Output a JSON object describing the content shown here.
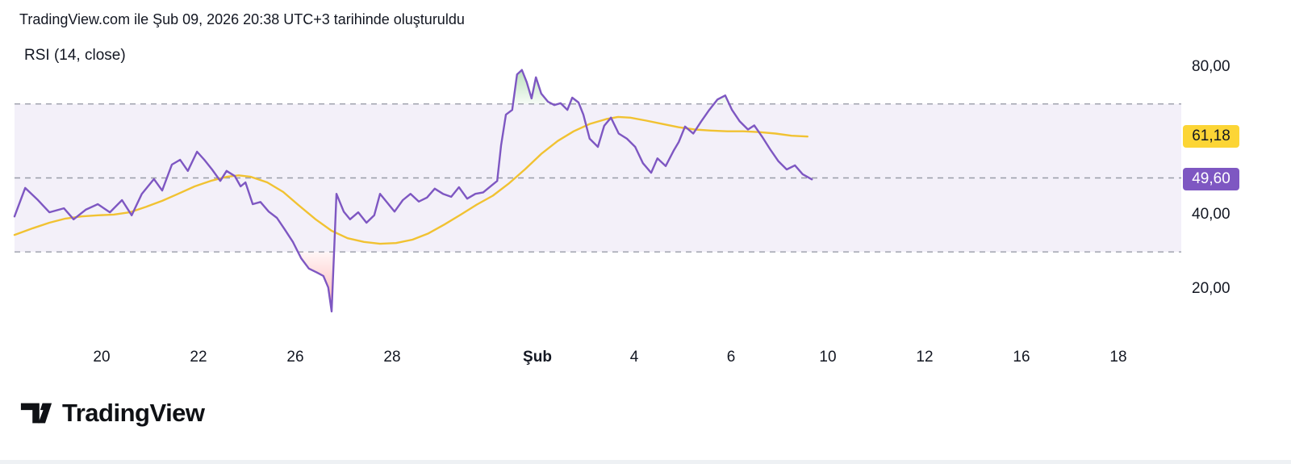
{
  "header": {
    "attribution": "TradingView.com ile Şub 09, 2026 20:38 UTC+3 tarihinde oluşturuldu"
  },
  "footer": {
    "logo_text": "TradingView"
  },
  "chart_data": {
    "type": "line",
    "title": "RSI (14, close)",
    "y_axis": {
      "range": [
        4,
        88
      ],
      "ticks": [
        {
          "label": "80,00",
          "value": 80
        },
        {
          "label": "40,00",
          "value": 40
        },
        {
          "label": "20,00",
          "value": 20
        }
      ]
    },
    "x_axis": {
      "note": "trading-day index, 0 = first visible day",
      "visible_day_range": [
        0,
        24.3
      ],
      "ticks": [
        {
          "label": "20",
          "day": 2
        },
        {
          "label": "22",
          "day": 4
        },
        {
          "label": "26",
          "day": 6
        },
        {
          "label": "28",
          "day": 8
        },
        {
          "label": "Şub",
          "day": 11,
          "bold": true
        },
        {
          "label": "4",
          "day": 13
        },
        {
          "label": "6",
          "day": 15
        },
        {
          "label": "10",
          "day": 17
        },
        {
          "label": "12",
          "day": 19
        },
        {
          "label": "16",
          "day": 21
        },
        {
          "label": "18",
          "day": 23
        }
      ]
    },
    "bands": {
      "upper": 70,
      "middle": 50,
      "lower": 30
    },
    "badges": [
      {
        "series": "ma",
        "label": "61,18",
        "value": 61.18,
        "bg": "#FCD535",
        "text_color": "#131722"
      },
      {
        "series": "rsi",
        "label": "49,60",
        "value": 49.6,
        "bg": "#7E57C2",
        "text_color": "#ffffff"
      }
    ],
    "colors": {
      "band_fill": "rgba(126,87,194,0.09)",
      "band_line": "#8A8E9B",
      "overbought_fill": "#4CAF50",
      "oversold_fill": "#FF5252"
    },
    "series": {
      "rsi": {
        "color": "#7E57C2",
        "last_value": 49.6,
        "points": [
          [
            0.2,
            39.6
          ],
          [
            0.42,
            47.3
          ],
          [
            0.67,
            44.2
          ],
          [
            0.92,
            40.7
          ],
          [
            1.22,
            41.8
          ],
          [
            1.42,
            38.8
          ],
          [
            1.67,
            41.4
          ],
          [
            1.92,
            42.9
          ],
          [
            2.17,
            40.7
          ],
          [
            2.42,
            44.0
          ],
          [
            2.62,
            39.9
          ],
          [
            2.83,
            45.7
          ],
          [
            3.08,
            49.7
          ],
          [
            3.25,
            46.6
          ],
          [
            3.45,
            53.6
          ],
          [
            3.62,
            54.9
          ],
          [
            3.78,
            51.9
          ],
          [
            3.97,
            57.1
          ],
          [
            4.12,
            54.9
          ],
          [
            4.28,
            52.3
          ],
          [
            4.45,
            49.2
          ],
          [
            4.58,
            51.9
          ],
          [
            4.75,
            50.5
          ],
          [
            4.87,
            47.7
          ],
          [
            4.97,
            48.8
          ],
          [
            5.12,
            42.9
          ],
          [
            5.28,
            43.5
          ],
          [
            5.45,
            40.9
          ],
          [
            5.62,
            39.2
          ],
          [
            5.78,
            36.1
          ],
          [
            5.95,
            32.7
          ],
          [
            6.12,
            28.3
          ],
          [
            6.28,
            25.5
          ],
          [
            6.45,
            24.4
          ],
          [
            6.58,
            23.5
          ],
          [
            6.68,
            20.4
          ],
          [
            6.75,
            13.9
          ],
          [
            6.85,
            45.7
          ],
          [
            7.0,
            40.9
          ],
          [
            7.13,
            38.8
          ],
          [
            7.3,
            40.7
          ],
          [
            7.47,
            37.9
          ],
          [
            7.63,
            39.9
          ],
          [
            7.75,
            45.7
          ],
          [
            7.88,
            43.6
          ],
          [
            8.05,
            40.9
          ],
          [
            8.22,
            44.0
          ],
          [
            8.38,
            45.7
          ],
          [
            8.55,
            43.6
          ],
          [
            8.72,
            44.7
          ],
          [
            8.88,
            47.1
          ],
          [
            9.05,
            45.7
          ],
          [
            9.22,
            44.9
          ],
          [
            9.38,
            47.5
          ],
          [
            9.55,
            44.4
          ],
          [
            9.72,
            45.7
          ],
          [
            9.88,
            46.1
          ],
          [
            10.05,
            47.9
          ],
          [
            10.17,
            49.2
          ],
          [
            10.25,
            58.8
          ],
          [
            10.35,
            67.1
          ],
          [
            10.48,
            68.4
          ],
          [
            10.58,
            78.0
          ],
          [
            10.68,
            79.2
          ],
          [
            10.78,
            75.9
          ],
          [
            10.88,
            71.5
          ],
          [
            10.97,
            77.2
          ],
          [
            11.08,
            72.8
          ],
          [
            11.22,
            70.6
          ],
          [
            11.35,
            69.7
          ],
          [
            11.48,
            70.2
          ],
          [
            11.62,
            68.4
          ],
          [
            11.72,
            71.7
          ],
          [
            11.85,
            70.4
          ],
          [
            11.95,
            67.1
          ],
          [
            12.08,
            60.6
          ],
          [
            12.25,
            58.4
          ],
          [
            12.38,
            64.1
          ],
          [
            12.52,
            66.3
          ],
          [
            12.68,
            62.0
          ],
          [
            12.85,
            60.6
          ],
          [
            13.02,
            58.4
          ],
          [
            13.18,
            54.0
          ],
          [
            13.35,
            51.4
          ],
          [
            13.48,
            55.3
          ],
          [
            13.65,
            53.2
          ],
          [
            13.82,
            57.5
          ],
          [
            13.92,
            59.7
          ],
          [
            14.05,
            63.9
          ],
          [
            14.22,
            62.0
          ],
          [
            14.38,
            65.2
          ],
          [
            14.55,
            68.4
          ],
          [
            14.72,
            71.2
          ],
          [
            14.88,
            72.3
          ],
          [
            15.02,
            68.4
          ],
          [
            15.18,
            65.3
          ],
          [
            15.35,
            63.1
          ],
          [
            15.48,
            64.2
          ],
          [
            15.65,
            61.0
          ],
          [
            15.82,
            57.5
          ],
          [
            15.98,
            54.5
          ],
          [
            16.15,
            52.3
          ],
          [
            16.32,
            53.4
          ],
          [
            16.48,
            51.0
          ],
          [
            16.67,
            49.6
          ]
        ]
      },
      "ma": {
        "color": "#F1C232",
        "last_value": 61.18,
        "points": [
          [
            0.2,
            34.6
          ],
          [
            0.58,
            36.4
          ],
          [
            0.92,
            37.9
          ],
          [
            1.25,
            39.0
          ],
          [
            1.58,
            39.6
          ],
          [
            1.92,
            39.9
          ],
          [
            2.25,
            40.1
          ],
          [
            2.58,
            40.7
          ],
          [
            2.92,
            42.2
          ],
          [
            3.25,
            43.8
          ],
          [
            3.58,
            45.7
          ],
          [
            3.92,
            47.7
          ],
          [
            4.25,
            49.2
          ],
          [
            4.58,
            50.3
          ],
          [
            4.83,
            50.7
          ],
          [
            5.08,
            50.3
          ],
          [
            5.42,
            48.8
          ],
          [
            5.75,
            46.2
          ],
          [
            6.08,
            42.5
          ],
          [
            6.42,
            38.8
          ],
          [
            6.75,
            35.7
          ],
          [
            7.08,
            33.7
          ],
          [
            7.42,
            32.7
          ],
          [
            7.75,
            32.2
          ],
          [
            8.08,
            32.4
          ],
          [
            8.42,
            33.3
          ],
          [
            8.75,
            35.0
          ],
          [
            9.08,
            37.4
          ],
          [
            9.42,
            40.1
          ],
          [
            9.75,
            42.8
          ],
          [
            10.08,
            45.2
          ],
          [
            10.42,
            48.6
          ],
          [
            10.75,
            52.4
          ],
          [
            11.08,
            56.5
          ],
          [
            11.42,
            60.0
          ],
          [
            11.75,
            62.6
          ],
          [
            12.08,
            64.6
          ],
          [
            12.42,
            65.9
          ],
          [
            12.67,
            66.5
          ],
          [
            12.92,
            66.3
          ],
          [
            13.25,
            65.5
          ],
          [
            13.58,
            64.6
          ],
          [
            13.92,
            63.7
          ],
          [
            14.25,
            63.1
          ],
          [
            14.58,
            62.8
          ],
          [
            14.92,
            62.6
          ],
          [
            15.25,
            62.6
          ],
          [
            15.58,
            62.4
          ],
          [
            15.92,
            62.0
          ],
          [
            16.25,
            61.4
          ],
          [
            16.58,
            61.2
          ]
        ]
      }
    }
  }
}
